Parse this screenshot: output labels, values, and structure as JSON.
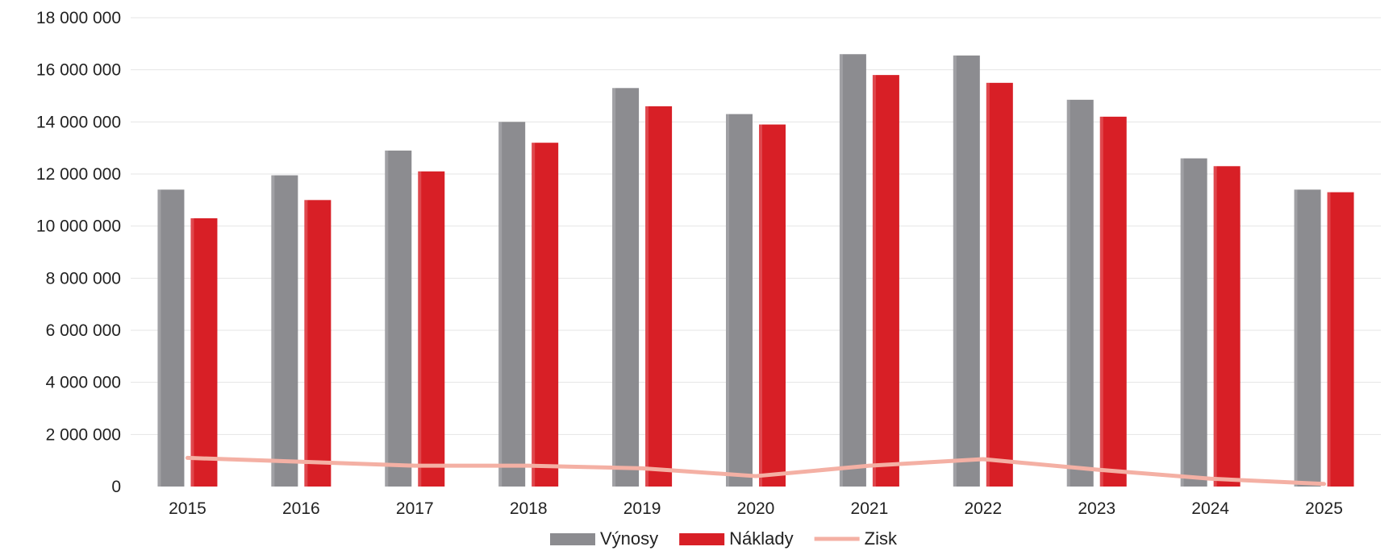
{
  "chart_data": {
    "type": "bar",
    "title": "",
    "xlabel": "",
    "ylabel": "",
    "categories": [
      "2015",
      "2016",
      "2017",
      "2018",
      "2019",
      "2020",
      "2021",
      "2022",
      "2023",
      "2024",
      "2025"
    ],
    "ylim": [
      0,
      18000000
    ],
    "yticks": [
      "0",
      "2 000 000",
      "4 000 000",
      "6 000 000",
      "8 000 000",
      "10 000 000",
      "12 000 000",
      "14 000 000",
      "16 000 000",
      "18 000 000"
    ],
    "grid": true,
    "legend_position": "bottom",
    "series": [
      {
        "name": "Výnosy",
        "kind": "bar",
        "color": "#8c8c90",
        "values": [
          11400000,
          11950000,
          12900000,
          14000000,
          15300000,
          14300000,
          16600000,
          16550000,
          14850000,
          12600000,
          11400000
        ]
      },
      {
        "name": "Náklady",
        "kind": "bar",
        "color": "#d81f26",
        "values": [
          10300000,
          11000000,
          12100000,
          13200000,
          14600000,
          13900000,
          15800000,
          15500000,
          14200000,
          12300000,
          11300000
        ]
      },
      {
        "name": "Zisk",
        "kind": "line",
        "color": "#f4b0a4",
        "values": [
          1100000,
          950000,
          800000,
          800000,
          700000,
          400000,
          800000,
          1050000,
          650000,
          300000,
          100000
        ]
      }
    ]
  }
}
